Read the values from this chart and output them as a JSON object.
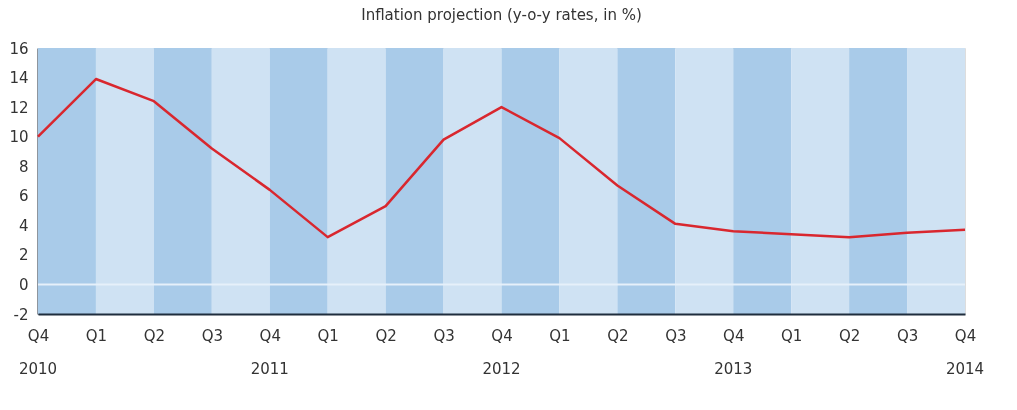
{
  "chart_data": {
    "type": "line",
    "title": "Inflation projection (y-o-y rates, in %)",
    "categories": [
      "Q4",
      "Q1",
      "Q2",
      "Q3",
      "Q4",
      "Q1",
      "Q2",
      "Q3",
      "Q4",
      "Q1",
      "Q2",
      "Q3",
      "Q4",
      "Q1",
      "Q2",
      "Q3",
      "Q4"
    ],
    "series": [
      {
        "color": "#d9272e",
        "values": [
          10,
          13.9,
          12.4,
          9.2,
          6.4,
          3.2,
          5.3,
          9.8,
          12.0,
          9.9,
          6.7,
          4.1,
          3.6,
          3.4,
          3.2,
          3.5,
          3.7
        ]
      }
    ],
    "ylim": [
      -2,
      16
    ],
    "yticks": [
      -2,
      0,
      2,
      4,
      6,
      8,
      10,
      12,
      14,
      16
    ],
    "grid": false,
    "line_style": "solid",
    "marker": "none",
    "annotations": [
      "2010",
      "2011",
      "2012",
      "2013",
      "2014"
    ],
    "ref_lines": [
      {
        "axis": "y",
        "value": 0,
        "color": "#e6f0fa"
      }
    ]
  }
}
